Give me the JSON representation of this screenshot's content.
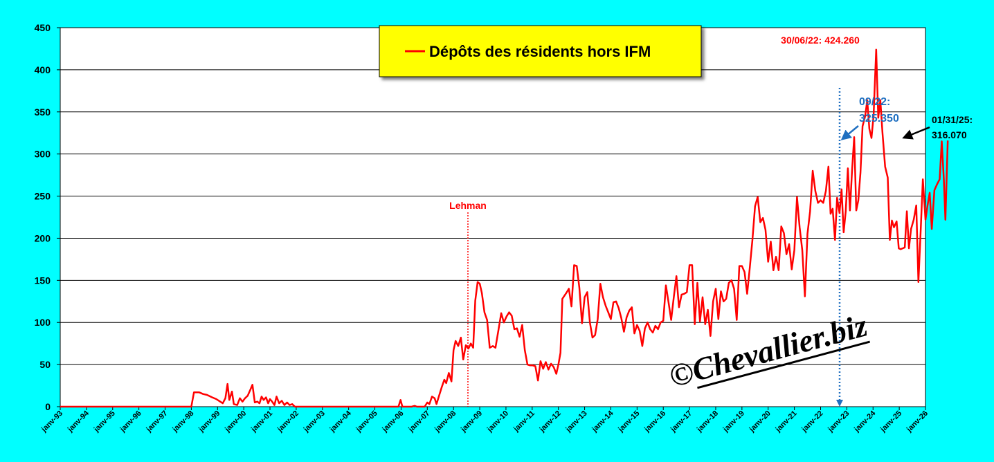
{
  "colors": {
    "background": "#00FFFF",
    "plot_area": "#FFFFFF",
    "series": "#FF0000",
    "legend_box": "#FFFF00",
    "annotation_blue": "#1F6FC0",
    "annotation_red": "#FF0000",
    "annotation_black": "#000000"
  },
  "watermark": {
    "copyright": "©",
    "text": "Chevallier.biz"
  },
  "chart_data": {
    "type": "line",
    "title": "",
    "xlabel": "",
    "ylabel": "",
    "ylim": [
      0,
      450
    ],
    "yticks": [
      0,
      50,
      100,
      150,
      200,
      250,
      300,
      350,
      400,
      450
    ],
    "grid": "horizontal",
    "xlim": [
      1993.0,
      2026.0
    ],
    "xticks": [
      {
        "year": 1993,
        "label": "janv-93"
      },
      {
        "year": 1994,
        "label": "janv-94"
      },
      {
        "year": 1995,
        "label": "janv-95"
      },
      {
        "year": 1996,
        "label": "janv-96"
      },
      {
        "year": 1997,
        "label": "janv-97"
      },
      {
        "year": 1998,
        "label": "janv-98"
      },
      {
        "year": 1999,
        "label": "janv-99"
      },
      {
        "year": 2000,
        "label": "janv-00"
      },
      {
        "year": 2001,
        "label": "janv-01"
      },
      {
        "year": 2002,
        "label": "janv-02"
      },
      {
        "year": 2003,
        "label": "janv-03"
      },
      {
        "year": 2004,
        "label": "janv-04"
      },
      {
        "year": 2005,
        "label": "janv-05"
      },
      {
        "year": 2006,
        "label": "janv-06"
      },
      {
        "year": 2007,
        "label": "janv-07"
      },
      {
        "year": 2008,
        "label": "janv-08"
      },
      {
        "year": 2009,
        "label": "janv-09"
      },
      {
        "year": 2010,
        "label": "janv-10"
      },
      {
        "year": 2011,
        "label": "janv-11"
      },
      {
        "year": 2012,
        "label": "janv-12"
      },
      {
        "year": 2013,
        "label": "janv-13"
      },
      {
        "year": 2014,
        "label": "janv-14"
      },
      {
        "year": 2015,
        "label": "janv-15"
      },
      {
        "year": 2016,
        "label": "janv-16"
      },
      {
        "year": 2017,
        "label": "janv-17"
      },
      {
        "year": 2018,
        "label": "janv-18"
      },
      {
        "year": 2019,
        "label": "janv-19"
      },
      {
        "year": 2020,
        "label": "janv-20"
      },
      {
        "year": 2021,
        "label": "janv-21"
      },
      {
        "year": 2022,
        "label": "janv-22"
      },
      {
        "year": 2023,
        "label": "janv-23"
      },
      {
        "year": 2024,
        "label": "janv-24"
      },
      {
        "year": 2025,
        "label": "janv-25"
      },
      {
        "year": 2026,
        "label": "janv-26"
      }
    ],
    "legend": {
      "position": "top-center",
      "label": "Dépôts des résidents hors IFM"
    },
    "series": [
      {
        "name": "Dépôts des résidents hors IFM",
        "color": "#FF0000",
        "points": [
          [
            1993.0,
            0
          ],
          [
            1995.0,
            0
          ],
          [
            1996.5,
            0
          ],
          [
            1997.5,
            0
          ],
          [
            1997.8,
            0
          ],
          [
            1998.0,
            0
          ],
          [
            1998.1,
            17
          ],
          [
            1998.3,
            17
          ],
          [
            1998.45,
            15
          ],
          [
            1998.6,
            14
          ],
          [
            1998.8,
            11
          ],
          [
            1998.95,
            9
          ],
          [
            1999.1,
            6
          ],
          [
            1999.2,
            4
          ],
          [
            1999.3,
            10
          ],
          [
            1999.38,
            27
          ],
          [
            1999.45,
            8
          ],
          [
            1999.55,
            18
          ],
          [
            1999.62,
            3
          ],
          [
            1999.75,
            2
          ],
          [
            1999.85,
            10
          ],
          [
            1999.95,
            6
          ],
          [
            2000.05,
            10
          ],
          [
            2000.15,
            13
          ],
          [
            2000.25,
            20
          ],
          [
            2000.33,
            26
          ],
          [
            2000.42,
            5
          ],
          [
            2000.52,
            6
          ],
          [
            2000.6,
            4
          ],
          [
            2000.68,
            12
          ],
          [
            2000.76,
            8
          ],
          [
            2000.85,
            11
          ],
          [
            2000.93,
            4
          ],
          [
            2001.0,
            9
          ],
          [
            2001.08,
            6
          ],
          [
            2001.17,
            2
          ],
          [
            2001.25,
            12
          ],
          [
            2001.35,
            4
          ],
          [
            2001.45,
            7
          ],
          [
            2001.55,
            2
          ],
          [
            2001.65,
            5
          ],
          [
            2001.75,
            2
          ],
          [
            2001.85,
            3
          ],
          [
            2001.95,
            0
          ],
          [
            2002.3,
            0
          ],
          [
            2004.0,
            0
          ],
          [
            2005.5,
            0
          ],
          [
            2005.9,
            0
          ],
          [
            2005.98,
            8
          ],
          [
            2006.05,
            0
          ],
          [
            2006.4,
            0
          ],
          [
            2006.52,
            1
          ],
          [
            2006.6,
            0
          ],
          [
            2006.9,
            0
          ],
          [
            2007.0,
            5
          ],
          [
            2007.08,
            3
          ],
          [
            2007.18,
            12
          ],
          [
            2007.28,
            10
          ],
          [
            2007.35,
            3
          ],
          [
            2007.45,
            13
          ],
          [
            2007.55,
            23
          ],
          [
            2007.65,
            32
          ],
          [
            2007.72,
            28
          ],
          [
            2007.82,
            40
          ],
          [
            2007.92,
            30
          ],
          [
            2008.0,
            67
          ],
          [
            2008.08,
            78
          ],
          [
            2008.18,
            72
          ],
          [
            2008.28,
            82
          ],
          [
            2008.37,
            56
          ],
          [
            2008.47,
            73
          ],
          [
            2008.57,
            69
          ],
          [
            2008.66,
            75
          ],
          [
            2008.75,
            70
          ],
          [
            2008.83,
            126
          ],
          [
            2008.92,
            148
          ],
          [
            2009.0,
            146
          ],
          [
            2009.08,
            135
          ],
          [
            2009.18,
            112
          ],
          [
            2009.28,
            103
          ],
          [
            2009.38,
            70
          ],
          [
            2009.5,
            72
          ],
          [
            2009.6,
            70
          ],
          [
            2009.72,
            92
          ],
          [
            2009.82,
            111
          ],
          [
            2009.92,
            100
          ],
          [
            2010.02,
            107
          ],
          [
            2010.12,
            112
          ],
          [
            2010.22,
            108
          ],
          [
            2010.32,
            92
          ],
          [
            2010.42,
            93
          ],
          [
            2010.52,
            83
          ],
          [
            2010.62,
            97
          ],
          [
            2010.72,
            67
          ],
          [
            2010.82,
            50
          ],
          [
            2010.92,
            49
          ],
          [
            2011.02,
            49
          ],
          [
            2011.12,
            48
          ],
          [
            2011.22,
            31
          ],
          [
            2011.32,
            54
          ],
          [
            2011.42,
            45
          ],
          [
            2011.52,
            53
          ],
          [
            2011.62,
            44
          ],
          [
            2011.72,
            51
          ],
          [
            2011.82,
            47
          ],
          [
            2011.92,
            39
          ],
          [
            2012.0,
            50
          ],
          [
            2012.08,
            64
          ],
          [
            2012.15,
            128
          ],
          [
            2012.3,
            135
          ],
          [
            2012.4,
            140
          ],
          [
            2012.5,
            119
          ],
          [
            2012.6,
            168
          ],
          [
            2012.7,
            167
          ],
          [
            2012.8,
            141
          ],
          [
            2012.9,
            99
          ],
          [
            2013.0,
            130
          ],
          [
            2013.1,
            136
          ],
          [
            2013.2,
            100
          ],
          [
            2013.3,
            82
          ],
          [
            2013.4,
            85
          ],
          [
            2013.5,
            104
          ],
          [
            2013.6,
            146
          ],
          [
            2013.7,
            130
          ],
          [
            2013.8,
            120
          ],
          [
            2013.9,
            112
          ],
          [
            2014.0,
            104
          ],
          [
            2014.1,
            124
          ],
          [
            2014.2,
            125
          ],
          [
            2014.3,
            117
          ],
          [
            2014.4,
            105
          ],
          [
            2014.5,
            89
          ],
          [
            2014.6,
            106
          ],
          [
            2014.7,
            114
          ],
          [
            2014.8,
            118
          ],
          [
            2014.9,
            87
          ],
          [
            2015.0,
            97
          ],
          [
            2015.1,
            90
          ],
          [
            2015.2,
            72
          ],
          [
            2015.3,
            93
          ],
          [
            2015.4,
            100
          ],
          [
            2015.5,
            92
          ],
          [
            2015.6,
            88
          ],
          [
            2015.7,
            96
          ],
          [
            2015.8,
            92
          ],
          [
            2015.9,
            100
          ],
          [
            2016.0,
            102
          ],
          [
            2016.1,
            144
          ],
          [
            2016.2,
            124
          ],
          [
            2016.3,
            103
          ],
          [
            2016.4,
            130
          ],
          [
            2016.5,
            155
          ],
          [
            2016.6,
            118
          ],
          [
            2016.7,
            133
          ],
          [
            2016.8,
            134
          ],
          [
            2016.9,
            136
          ],
          [
            2017.0,
            168
          ],
          [
            2017.1,
            168
          ],
          [
            2017.2,
            98
          ],
          [
            2017.3,
            147
          ],
          [
            2017.4,
            101
          ],
          [
            2017.5,
            130
          ],
          [
            2017.6,
            98
          ],
          [
            2017.7,
            115
          ],
          [
            2017.8,
            84
          ],
          [
            2017.9,
            125
          ],
          [
            2018.0,
            140
          ],
          [
            2018.1,
            104
          ],
          [
            2018.2,
            137
          ],
          [
            2018.3,
            125
          ],
          [
            2018.4,
            128
          ],
          [
            2018.5,
            147
          ],
          [
            2018.6,
            150
          ],
          [
            2018.7,
            140
          ],
          [
            2018.8,
            103
          ],
          [
            2018.9,
            167
          ],
          [
            2019.0,
            167
          ],
          [
            2019.1,
            160
          ],
          [
            2019.2,
            134
          ],
          [
            2019.3,
            165
          ],
          [
            2019.4,
            198
          ],
          [
            2019.5,
            238
          ],
          [
            2019.6,
            249
          ],
          [
            2019.7,
            219
          ],
          [
            2019.8,
            224
          ],
          [
            2019.9,
            210
          ],
          [
            2020.0,
            172
          ],
          [
            2020.1,
            196
          ],
          [
            2020.2,
            162
          ],
          [
            2020.3,
            178
          ],
          [
            2020.4,
            162
          ],
          [
            2020.5,
            214
          ],
          [
            2020.6,
            206
          ],
          [
            2020.7,
            181
          ],
          [
            2020.8,
            193
          ],
          [
            2020.9,
            163
          ],
          [
            2021.0,
            186
          ],
          [
            2021.1,
            249
          ],
          [
            2021.2,
            213
          ],
          [
            2021.3,
            186
          ],
          [
            2021.4,
            131
          ],
          [
            2021.5,
            205
          ],
          [
            2021.6,
            232
          ],
          [
            2021.7,
            280
          ],
          [
            2021.8,
            256
          ],
          [
            2021.9,
            242
          ],
          [
            2022.0,
            245
          ],
          [
            2022.1,
            242
          ],
          [
            2022.2,
            256
          ],
          [
            2022.3,
            285
          ],
          [
            2022.38,
            229
          ],
          [
            2022.46,
            235
          ],
          [
            2022.55,
            198
          ],
          [
            2022.63,
            248
          ],
          [
            2022.72,
            230
          ],
          [
            2022.8,
            258
          ],
          [
            2022.88,
            207
          ],
          [
            2022.96,
            232
          ],
          [
            2023.04,
            283
          ],
          [
            2023.12,
            233
          ],
          [
            2023.2,
            280
          ],
          [
            2023.28,
            320
          ],
          [
            2023.36,
            233
          ],
          [
            2023.44,
            245
          ],
          [
            2023.52,
            278
          ],
          [
            2023.6,
            333
          ],
          [
            2023.7,
            345
          ],
          [
            2023.78,
            364
          ],
          [
            2023.86,
            330
          ],
          [
            2023.94,
            319
          ],
          [
            2024.02,
            345
          ],
          [
            2024.12,
            424
          ],
          [
            2024.2,
            343
          ],
          [
            2024.28,
            364
          ],
          [
            2024.36,
            325
          ],
          [
            2024.46,
            285
          ],
          [
            2024.56,
            272
          ],
          [
            2024.64,
            198
          ],
          [
            2024.72,
            221
          ],
          [
            2024.8,
            213
          ],
          [
            2024.9,
            220
          ],
          [
            2024.98,
            188
          ],
          [
            2025.05,
            187
          ],
          [
            2025.13,
            188
          ],
          [
            2025.21,
            189
          ],
          [
            2025.29,
            232
          ],
          [
            2025.37,
            188
          ],
          [
            2025.45,
            211
          ],
          [
            2025.55,
            222
          ],
          [
            2025.65,
            239
          ],
          [
            2025.73,
            148
          ],
          [
            2025.82,
            211
          ],
          [
            2025.9,
            270
          ],
          [
            2026.0,
            222
          ],
          [
            2026.08,
            239
          ],
          [
            2026.16,
            254
          ],
          [
            2026.24,
            211
          ],
          [
            2026.34,
            257
          ],
          [
            2026.44,
            264
          ],
          [
            2026.54,
            270
          ],
          [
            2026.62,
            315
          ],
          [
            2026.7,
            270
          ],
          [
            2026.76,
            222
          ],
          [
            2026.85,
            316
          ]
        ]
      }
    ],
    "annotations": [
      {
        "id": "peak",
        "text": "30/06/22: 424.260",
        "color": "#FF0000"
      },
      {
        "id": "sep22_a",
        "text": "09/22:",
        "color": "#1F6FC0"
      },
      {
        "id": "sep22_b",
        "text": "325.350",
        "color": "#1F6FC0"
      },
      {
        "id": "last_a",
        "text": "01/31/25:",
        "color": "#000000"
      },
      {
        "id": "last_b",
        "text": "316.070",
        "color": "#000000"
      },
      {
        "id": "lehman",
        "text": "Lehman",
        "color": "#FF0000"
      }
    ]
  }
}
